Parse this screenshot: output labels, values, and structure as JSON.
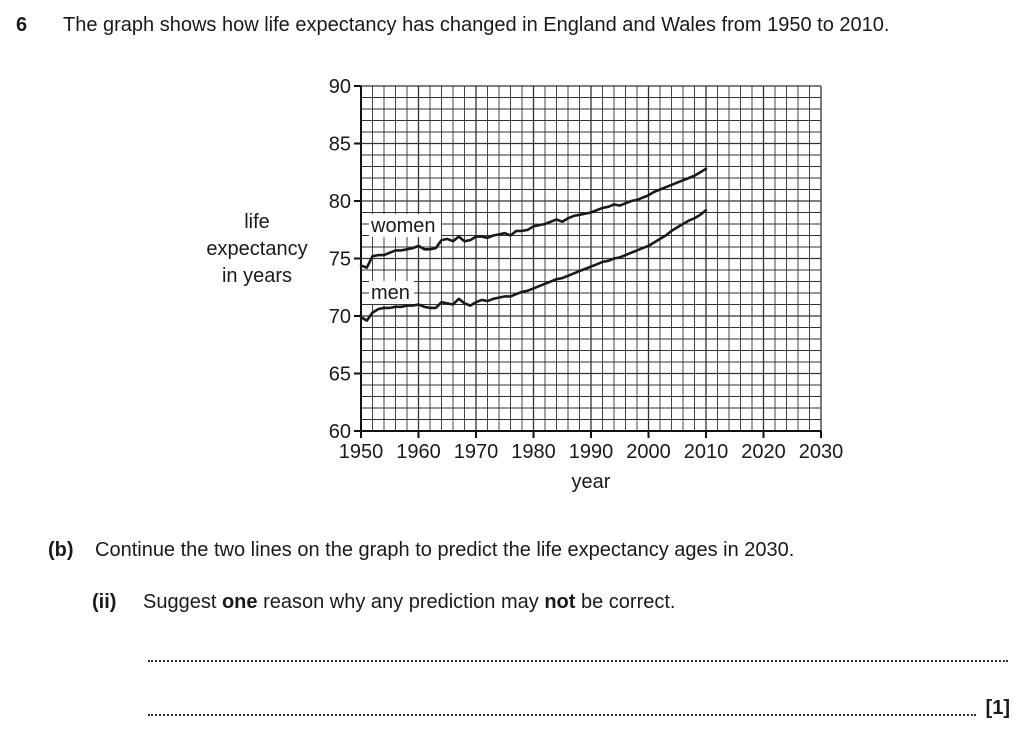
{
  "question": {
    "number": "6",
    "text": "The graph shows how life expectancy has changed in England and Wales from 1950 to 2010."
  },
  "part_b": {
    "label": "(b)",
    "text": "Continue the two lines on the graph to predict the life expectancy ages in 2030."
  },
  "part_ii": {
    "label": "(ii)",
    "text_before": "Suggest ",
    "bold1": "one",
    "text_middle": " reason why any prediction may ",
    "bold2": "not",
    "text_after": " be correct."
  },
  "marks": "[1]",
  "chart_data": {
    "type": "line",
    "title": "",
    "xlabel": "year",
    "ylabel_lines": [
      "life",
      "expectancy",
      "in years"
    ],
    "xlim": [
      1950,
      2030
    ],
    "ylim": [
      60,
      90
    ],
    "x_ticks": [
      1950,
      1960,
      1970,
      1980,
      1990,
      2000,
      2010,
      2020,
      2030
    ],
    "y_ticks": [
      60,
      65,
      70,
      75,
      80,
      85,
      90
    ],
    "grid": true,
    "series": [
      {
        "name": "women",
        "x": [
          1950,
          1951,
          1952,
          1953,
          1954,
          1955,
          1956,
          1957,
          1958,
          1959,
          1960,
          1961,
          1962,
          1963,
          1964,
          1965,
          1966,
          1967,
          1968,
          1969,
          1970,
          1971,
          1972,
          1973,
          1974,
          1975,
          1976,
          1977,
          1978,
          1979,
          1980,
          1981,
          1982,
          1983,
          1984,
          1985,
          1986,
          1987,
          1988,
          1989,
          1990,
          1991,
          1992,
          1993,
          1994,
          1995,
          1996,
          1997,
          1998,
          1999,
          2000,
          2001,
          2002,
          2003,
          2004,
          2005,
          2006,
          2007,
          2008,
          2009,
          2010
        ],
        "values": [
          74.4,
          74.2,
          75.2,
          75.3,
          75.3,
          75.5,
          75.7,
          75.7,
          75.8,
          75.9,
          76.1,
          75.8,
          75.8,
          75.9,
          76.6,
          76.7,
          76.5,
          76.9,
          76.5,
          76.6,
          76.9,
          76.9,
          76.8,
          77.0,
          77.1,
          77.2,
          77.0,
          77.4,
          77.4,
          77.5,
          77.8,
          77.9,
          78.0,
          78.2,
          78.4,
          78.2,
          78.5,
          78.7,
          78.8,
          78.9,
          79.0,
          79.2,
          79.4,
          79.5,
          79.7,
          79.6,
          79.8,
          80.0,
          80.1,
          80.3,
          80.5,
          80.8,
          81.0,
          81.2,
          81.4,
          81.6,
          81.8,
          82.0,
          82.2,
          82.5,
          82.8
        ]
      },
      {
        "name": "men",
        "x": [
          1950,
          1951,
          1952,
          1953,
          1954,
          1955,
          1956,
          1957,
          1958,
          1959,
          1960,
          1961,
          1962,
          1963,
          1964,
          1965,
          1966,
          1967,
          1968,
          1969,
          1970,
          1971,
          1972,
          1973,
          1974,
          1975,
          1976,
          1977,
          1978,
          1979,
          1980,
          1981,
          1982,
          1983,
          1984,
          1985,
          1986,
          1987,
          1988,
          1989,
          1990,
          1991,
          1992,
          1993,
          1994,
          1995,
          1996,
          1997,
          1998,
          1999,
          2000,
          2001,
          2002,
          2003,
          2004,
          2005,
          2006,
          2007,
          2008,
          2009,
          2010
        ],
        "values": [
          69.9,
          69.6,
          70.3,
          70.6,
          70.7,
          70.7,
          70.8,
          70.8,
          70.9,
          70.9,
          71.0,
          70.8,
          70.7,
          70.7,
          71.2,
          71.1,
          71.0,
          71.5,
          71.1,
          70.9,
          71.2,
          71.4,
          71.3,
          71.5,
          71.6,
          71.7,
          71.7,
          71.9,
          72.1,
          72.2,
          72.4,
          72.6,
          72.8,
          73.0,
          73.2,
          73.3,
          73.5,
          73.7,
          73.9,
          74.1,
          74.3,
          74.5,
          74.7,
          74.8,
          75.0,
          75.1,
          75.3,
          75.5,
          75.7,
          75.9,
          76.1,
          76.4,
          76.7,
          77.0,
          77.4,
          77.7,
          78.0,
          78.3,
          78.5,
          78.8,
          79.2
        ]
      }
    ]
  }
}
